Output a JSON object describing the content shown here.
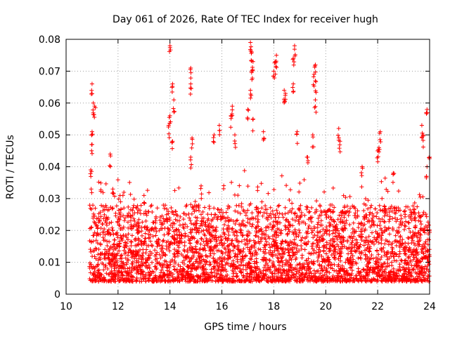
{
  "chart_data": {
    "type": "scatter",
    "title": "Day 061 of 2026, Rate Of TEC Index for receiver hugh",
    "xlabel": "GPS time / hours",
    "ylabel": "ROTI / TECUs",
    "xlim": [
      10,
      24
    ],
    "ylim": [
      0,
      0.08
    ],
    "xticks": [
      "10",
      "12",
      "14",
      "16",
      "18",
      "20",
      "22",
      "24"
    ],
    "yticks": [
      "0",
      "0.01",
      "0.02",
      "0.03",
      "0.04",
      "0.05",
      "0.06",
      "0.07",
      "0.08"
    ],
    "grid": true,
    "marker": "+",
    "color": "#ff0000",
    "description_of_series": "dense scatter of ROTI samples from ~10.9 h to 24 h, bulk between 0.005 and 0.03 TECU",
    "highlight_points": [
      {
        "x": 11.0,
        "y": 0.066
      },
      {
        "x": 11.05,
        "y": 0.06
      },
      {
        "x": 11.1,
        "y": 0.059
      },
      {
        "x": 11.0,
        "y": 0.051
      },
      {
        "x": 10.95,
        "y": 0.039
      },
      {
        "x": 11.0,
        "y": 0.047
      },
      {
        "x": 11.7,
        "y": 0.044
      },
      {
        "x": 11.8,
        "y": 0.033
      },
      {
        "x": 14.0,
        "y": 0.078
      },
      {
        "x": 14.1,
        "y": 0.066
      },
      {
        "x": 14.15,
        "y": 0.061
      },
      {
        "x": 14.0,
        "y": 0.056
      },
      {
        "x": 13.95,
        "y": 0.053
      },
      {
        "x": 14.1,
        "y": 0.048
      },
      {
        "x": 14.8,
        "y": 0.071
      },
      {
        "x": 14.8,
        "y": 0.066
      },
      {
        "x": 14.85,
        "y": 0.049
      },
      {
        "x": 14.8,
        "y": 0.043
      },
      {
        "x": 16.4,
        "y": 0.059
      },
      {
        "x": 16.35,
        "y": 0.056
      },
      {
        "x": 16.5,
        "y": 0.05
      },
      {
        "x": 15.9,
        "y": 0.053
      },
      {
        "x": 15.7,
        "y": 0.05
      },
      {
        "x": 17.1,
        "y": 0.079
      },
      {
        "x": 17.15,
        "y": 0.076
      },
      {
        "x": 17.2,
        "y": 0.073
      },
      {
        "x": 17.15,
        "y": 0.07
      },
      {
        "x": 17.1,
        "y": 0.064
      },
      {
        "x": 17.0,
        "y": 0.058
      },
      {
        "x": 17.2,
        "y": 0.055
      },
      {
        "x": 17.6,
        "y": 0.051
      },
      {
        "x": 18.1,
        "y": 0.075
      },
      {
        "x": 18.05,
        "y": 0.073
      },
      {
        "x": 18.0,
        "y": 0.07
      },
      {
        "x": 18.4,
        "y": 0.064
      },
      {
        "x": 18.45,
        "y": 0.063
      },
      {
        "x": 18.8,
        "y": 0.078
      },
      {
        "x": 18.75,
        "y": 0.074
      },
      {
        "x": 18.75,
        "y": 0.066
      },
      {
        "x": 18.9,
        "y": 0.051
      },
      {
        "x": 19.6,
        "y": 0.072
      },
      {
        "x": 19.55,
        "y": 0.069
      },
      {
        "x": 19.6,
        "y": 0.067
      },
      {
        "x": 19.6,
        "y": 0.061
      },
      {
        "x": 19.5,
        "y": 0.05
      },
      {
        "x": 20.5,
        "y": 0.052
      },
      {
        "x": 20.55,
        "y": 0.048
      },
      {
        "x": 22.1,
        "y": 0.051
      },
      {
        "x": 22.05,
        "y": 0.046
      },
      {
        "x": 22.0,
        "y": 0.045
      },
      {
        "x": 23.9,
        "y": 0.058
      },
      {
        "x": 23.7,
        "y": 0.053
      },
      {
        "x": 23.75,
        "y": 0.05
      },
      {
        "x": 24.0,
        "y": 0.043
      },
      {
        "x": 23.9,
        "y": 0.04
      },
      {
        "x": 12.1,
        "y": 0.029
      },
      {
        "x": 13.0,
        "y": 0.031
      },
      {
        "x": 15.2,
        "y": 0.034
      },
      {
        "x": 19.3,
        "y": 0.043
      },
      {
        "x": 21.4,
        "y": 0.04
      },
      {
        "x": 22.6,
        "y": 0.038
      }
    ]
  }
}
